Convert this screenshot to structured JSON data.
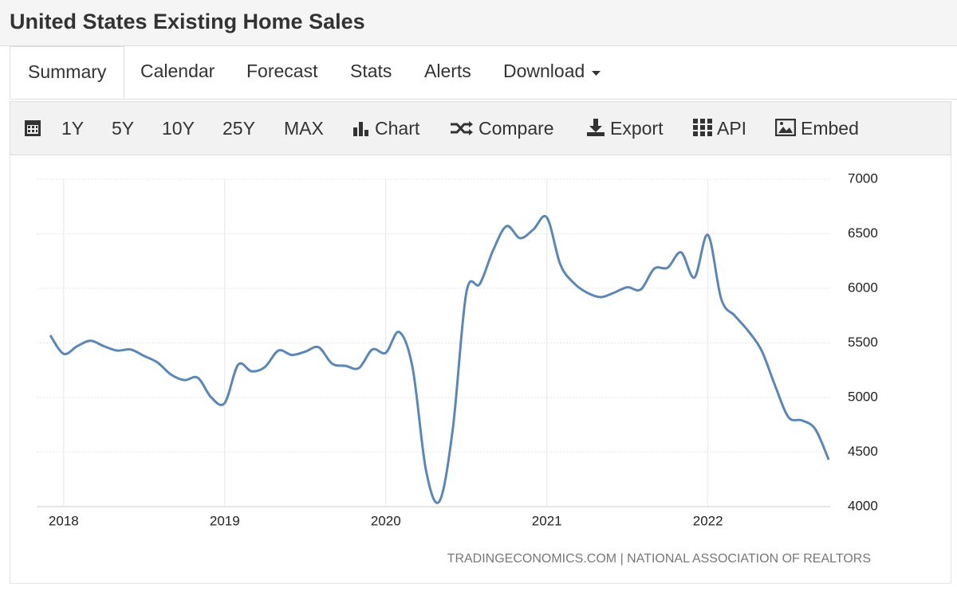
{
  "header": {
    "title": "United States Existing Home Sales"
  },
  "tabs": [
    "Summary",
    "Calendar",
    "Forecast",
    "Stats",
    "Alerts",
    "Download"
  ],
  "toolbar": [
    "1Y",
    "5Y",
    "10Y",
    "25Y",
    "MAX",
    "Chart",
    "Compare",
    "Export",
    "API",
    "Embed"
  ],
  "chart_data": {
    "type": "line",
    "source": "TRADINGECONOMICS.COM | NATIONAL ASSOCIATION OF REALTORS",
    "categories": [
      null,
      "2018",
      null,
      null,
      null,
      null,
      null,
      null,
      null,
      null,
      null,
      null,
      null,
      "2019",
      null,
      null,
      null,
      null,
      null,
      null,
      null,
      null,
      null,
      null,
      null,
      "2020",
      null,
      null,
      null,
      null,
      null,
      null,
      null,
      null,
      null,
      null,
      null,
      "2021",
      null,
      null,
      null,
      null,
      null,
      null,
      null,
      null,
      null,
      null,
      null,
      "2022",
      null,
      null,
      null,
      null,
      null,
      null,
      null,
      null,
      null
    ],
    "series": [
      {
        "color": "#5b87b5",
        "values": [
          5570,
          5400,
          5470,
          5520,
          5470,
          5430,
          5440,
          5380,
          5320,
          5210,
          5160,
          5180,
          5000,
          4950,
          5300,
          5240,
          5280,
          5430,
          5390,
          5420,
          5460,
          5310,
          5290,
          5270,
          5440,
          5410,
          5600,
          5270,
          4330,
          4050,
          4720,
          5960,
          6040,
          6350,
          6570,
          6460,
          6540,
          6650,
          6220,
          6050,
          5960,
          5920,
          5960,
          6010,
          5990,
          6180,
          6190,
          6330,
          6100,
          6490,
          5900,
          5750,
          5610,
          5430,
          5110,
          4820,
          4790,
          4710,
          4430
        ]
      }
    ],
    "ylim": [
      4000,
      7000
    ],
    "yticks": [
      4000,
      4500,
      5000,
      5500,
      6000,
      6500,
      7000
    ],
    "grid": true
  }
}
